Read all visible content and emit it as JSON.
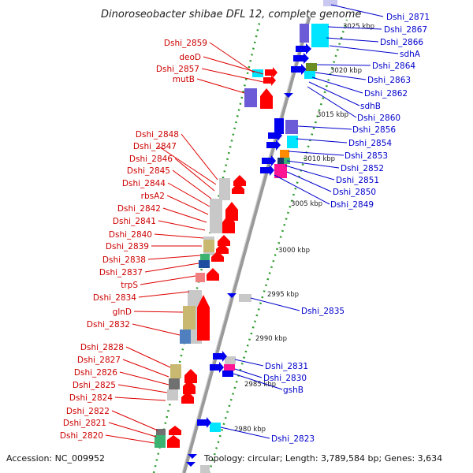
{
  "title": "Dinoroseobacter shibae DFL 12, complete genome",
  "footer": {
    "accession": "Accession: NC_009952",
    "topology": "Topology: circular; Length: 3,789,584 bp; Genes: 3,634"
  },
  "colors": {
    "forward_gene": "#ff0000",
    "reverse_gene": "#0000ee",
    "backbone": "#8a8a8a",
    "dots": "#2a9a2a",
    "label_left": "#cc0000",
    "label_right": "#0000cc"
  },
  "scale_ticks": [
    "3025 kbp",
    "3020 kbp",
    "3015 kbp",
    "3010 kbp",
    "3005 kbp",
    "3000 kbp",
    "2995 kbp",
    "2990 kbp",
    "2985 kbp",
    "2980 kbp"
  ],
  "left_labels": [
    "Dshi_2859",
    "deoD",
    "Dshi_2857",
    "mutB",
    "Dshi_2848",
    "Dshi_2847",
    "Dshi_2846",
    "Dshi_2845",
    "Dshi_2844",
    "rbsA2",
    "Dshi_2842",
    "Dshi_2841",
    "Dshi_2840",
    "Dshi_2839",
    "Dshi_2838",
    "Dshi_2837",
    "trpS",
    "Dshi_2834",
    "glnD",
    "Dshi_2832",
    "Dshi_2828",
    "Dshi_2827",
    "Dshi_2826",
    "Dshi_2825",
    "Dshi_2824",
    "Dshi_2822",
    "Dshi_2821",
    "Dshi_2820"
  ],
  "right_labels": [
    "Dshi_2871",
    "Dshi_2867",
    "Dshi_2866",
    "sdhA",
    "Dshi_2864",
    "Dshi_2863",
    "Dshi_2862",
    "sdhB",
    "Dshi_2860",
    "Dshi_2856",
    "Dshi_2854",
    "Dshi_2853",
    "Dshi_2852",
    "Dshi_2851",
    "Dshi_2850",
    "Dshi_2849",
    "Dshi_2835",
    "Dshi_2831",
    "Dshi_2830",
    "gshB",
    "Dshi_2823"
  ]
}
